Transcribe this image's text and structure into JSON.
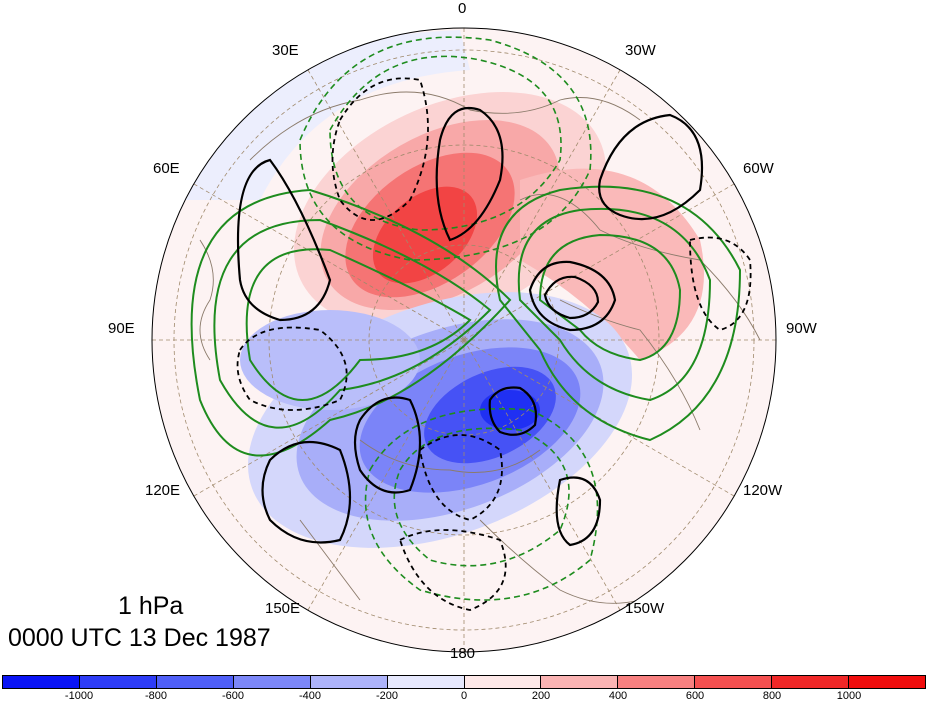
{
  "map": {
    "level_label": "1 hPa",
    "time_label": "0000 UTC 13 Dec 1987",
    "longitude_labels": [
      {
        "id": "lon-0",
        "text": "0"
      },
      {
        "id": "lon-30w",
        "text": "30W"
      },
      {
        "id": "lon-60w",
        "text": "60W"
      },
      {
        "id": "lon-90w",
        "text": "90W"
      },
      {
        "id": "lon-120w",
        "text": "120W"
      },
      {
        "id": "lon-150w",
        "text": "150W"
      },
      {
        "id": "lon-180",
        "text": "180"
      },
      {
        "id": "lon-150e",
        "text": "150E"
      },
      {
        "id": "lon-120e",
        "text": "120E"
      },
      {
        "id": "lon-90e",
        "text": "90E"
      },
      {
        "id": "lon-60e",
        "text": "60E"
      },
      {
        "id": "lon-30e",
        "text": "30E"
      }
    ],
    "projection": "north polar stereographic",
    "contours": {
      "positive_anomaly": "solid black",
      "negative_anomaly": "dashed black",
      "positive_green": "solid green",
      "negative_green": "dashed green"
    },
    "colors": {
      "positive": "#ff0000",
      "negative": "#0000ff",
      "coast": "#8b7b6b",
      "green_contour": "#1e8c1e"
    }
  },
  "colorbar": {
    "ticks": [
      "-1000",
      "-800",
      "-600",
      "-400",
      "-200",
      "0",
      "200",
      "400",
      "600",
      "800",
      "1000"
    ],
    "colors": [
      "#0a14f5",
      "#2d3cf6",
      "#4f5ff7",
      "#7c87f8",
      "#adb3fa",
      "#e6e8fd",
      "#fde8e8",
      "#fab3b3",
      "#f78080",
      "#f45050",
      "#f02828",
      "#f00d0d"
    ]
  }
}
